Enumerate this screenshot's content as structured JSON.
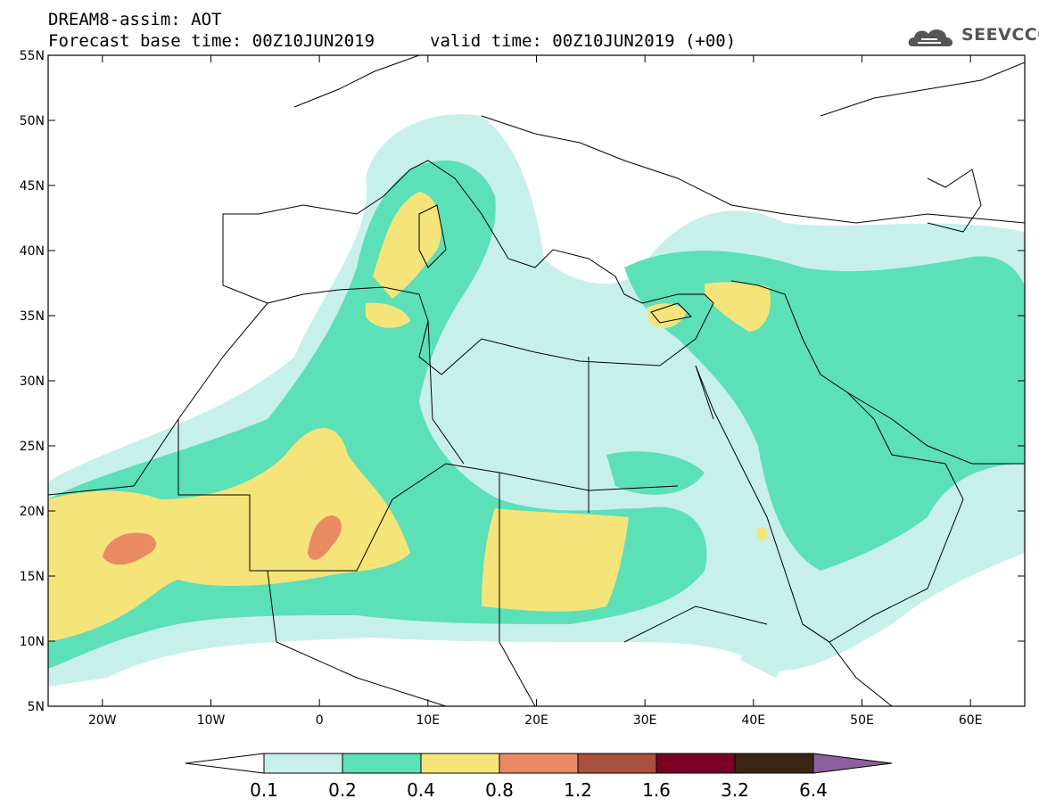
{
  "header": {
    "line1": "DREAM8-assim: AOT",
    "base_time": "Forecast base time: 00Z10JUN2019",
    "valid_time": "valid time: 00Z10JUN2019 (+00)"
  },
  "logo": {
    "text": "SEEVCCC",
    "icon": "cloud-logo-icon"
  },
  "map": {
    "lon_range": [
      -25,
      65
    ],
    "lat_range": [
      5,
      55
    ],
    "lat_ticks": [
      "55N",
      "50N",
      "45N",
      "40N",
      "35N",
      "30N",
      "25N",
      "20N",
      "15N",
      "10N",
      "5N"
    ],
    "lon_ticks": [
      "20W",
      "10W",
      "0",
      "10E",
      "20E",
      "30E",
      "40E",
      "50E",
      "60E"
    ],
    "region": "North Africa, Europe, Middle East",
    "field": "Aerosol optical thickness (dust)"
  },
  "colorbar": {
    "labels": [
      "0.1",
      "0.2",
      "0.4",
      "0.8",
      "1.2",
      "1.6",
      "3.2",
      "6.4"
    ],
    "colors": [
      "#ffffff",
      "#c8f0ea",
      "#5ce0b8",
      "#f5e47a",
      "#ea8a64",
      "#a8513e",
      "#7a0026",
      "#3b2616",
      "#8c60a0"
    ]
  }
}
